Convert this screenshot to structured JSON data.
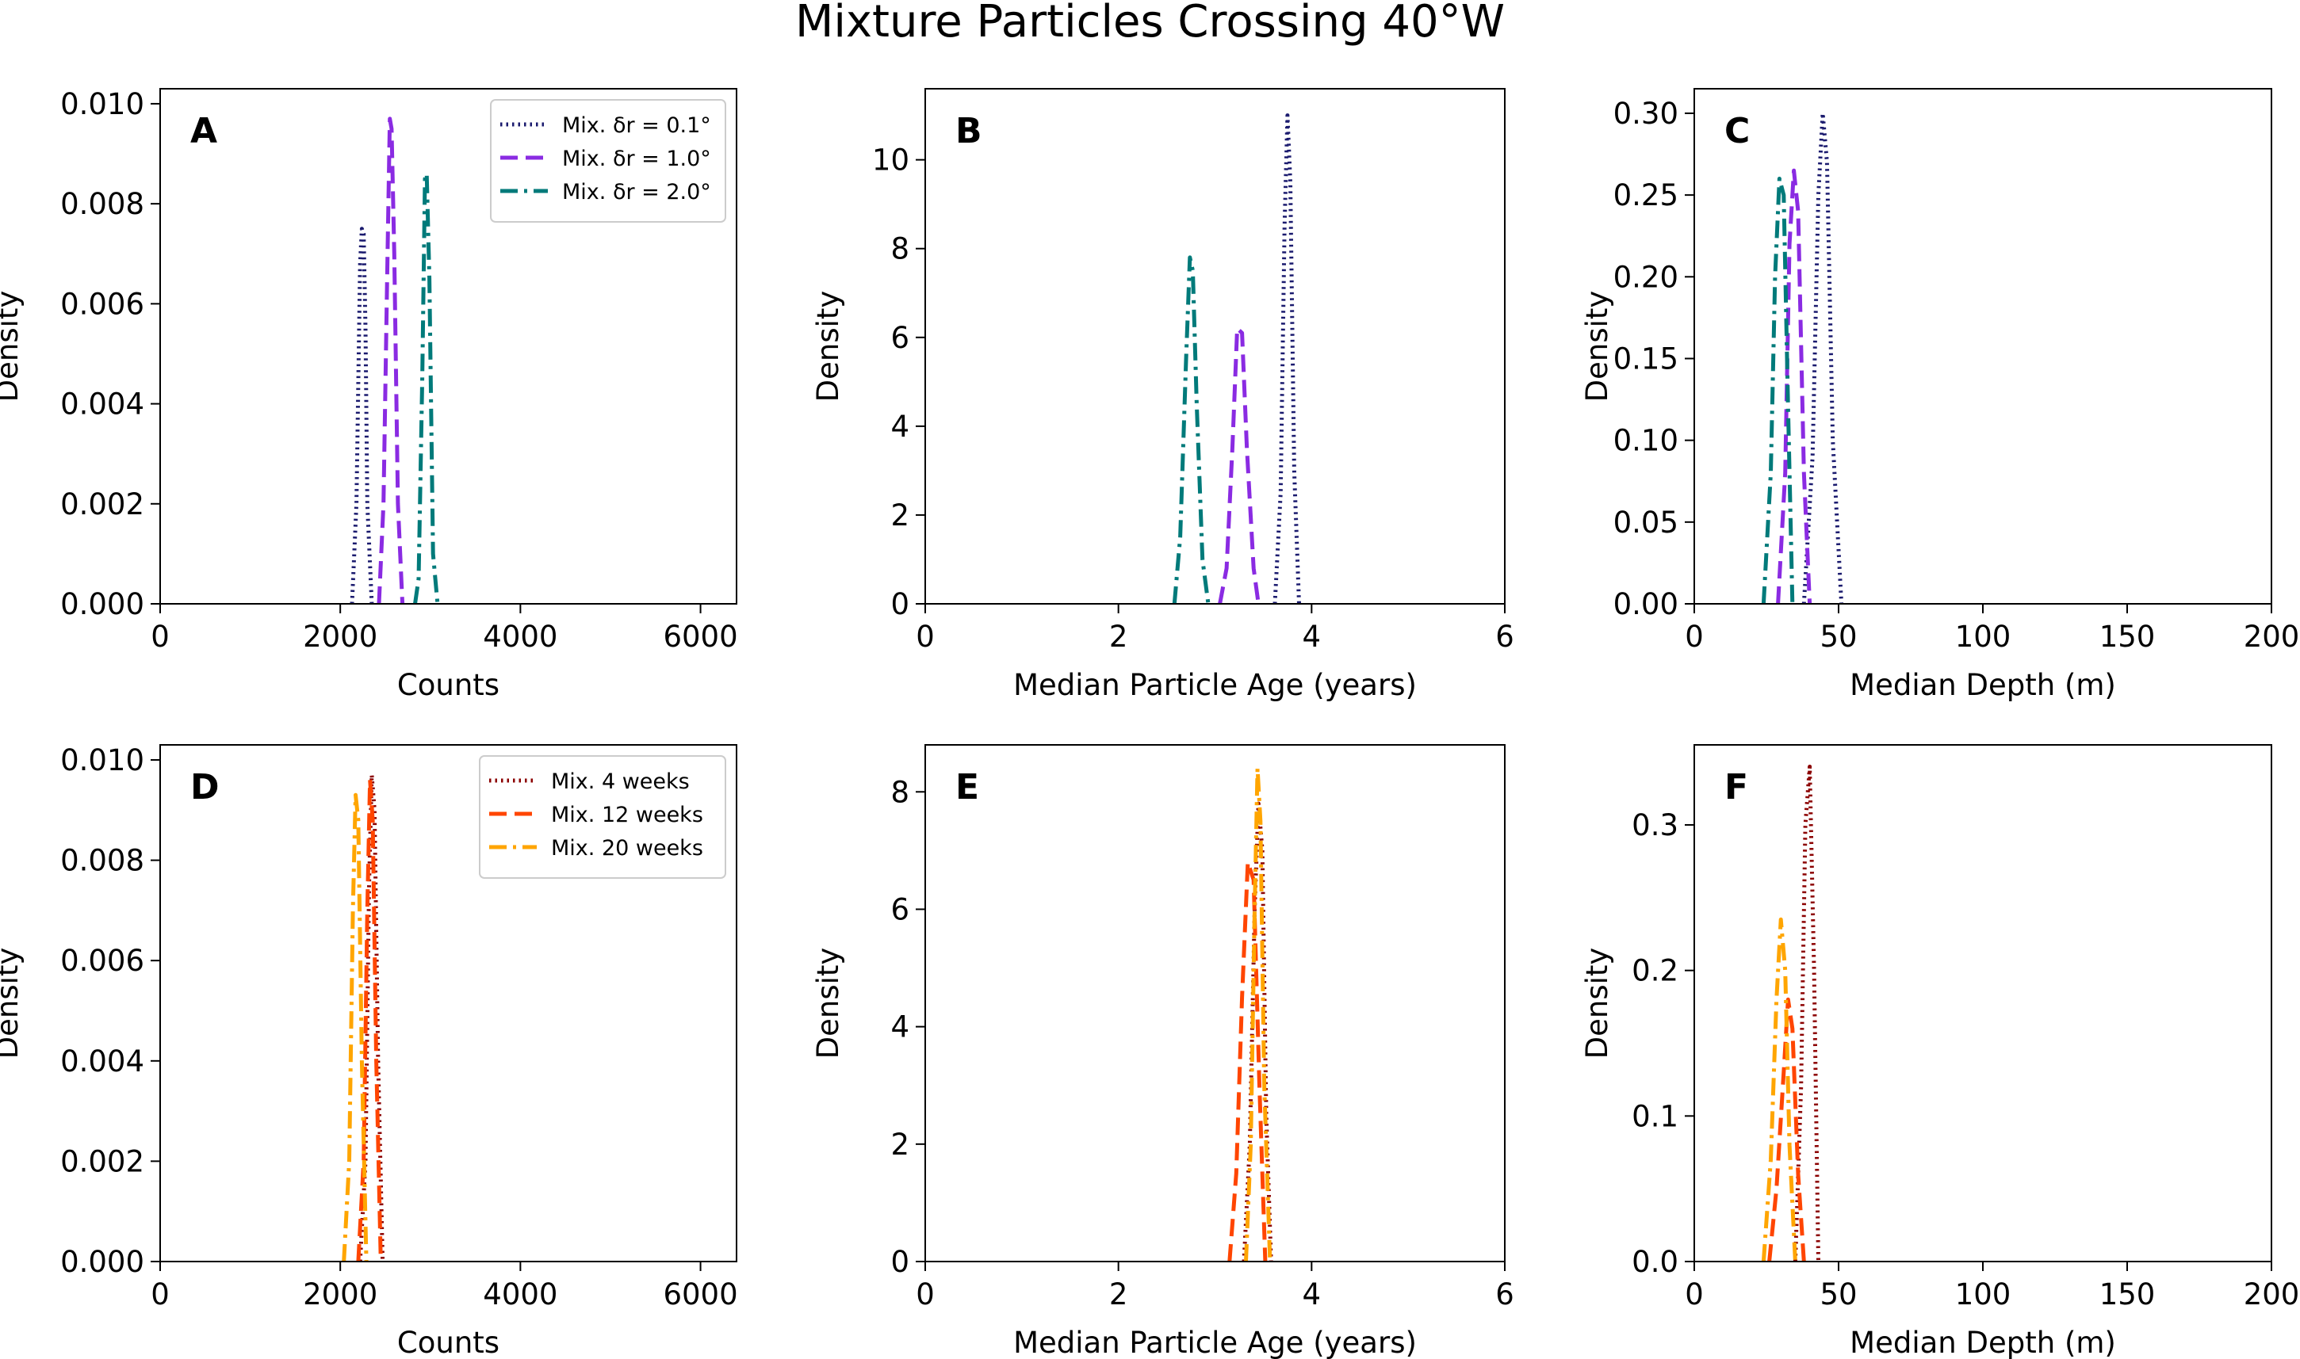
{
  "figure": {
    "title": "Mixture Particles Crossing 40°W"
  },
  "chart_data": [
    {
      "type": "line",
      "panel": "A",
      "xlabel": "Counts",
      "ylabel": "Density",
      "xlim": [
        0,
        6400
      ],
      "ylim": [
        0,
        0.0103
      ],
      "xticks": [
        0,
        2000,
        4000,
        6000
      ],
      "xtick_labels": [
        "0",
        "2000",
        "4000",
        "6000"
      ],
      "yticks": [
        0,
        0.002,
        0.004,
        0.006,
        0.008,
        0.01
      ],
      "ytick_labels": [
        "0.000",
        "0.002",
        "0.004",
        "0.006",
        "0.008",
        "0.010"
      ],
      "legend": "top-right",
      "series": [
        {
          "name": "Mix. δr = 0.1°",
          "color": "#1a1a6e",
          "style": "dotted",
          "x": [
            2130,
            2180,
            2220,
            2240,
            2260,
            2280,
            2300,
            2350
          ],
          "y": [
            0,
            0.002,
            0.0068,
            0.0075,
            0.0074,
            0.0055,
            0.002,
            0
          ]
        },
        {
          "name": "Mix. δr = 1.0°",
          "color": "#8a2be2",
          "style": "dashed",
          "x": [
            2430,
            2480,
            2520,
            2550,
            2570,
            2600,
            2640,
            2690
          ],
          "y": [
            0,
            0.002,
            0.0065,
            0.0097,
            0.0095,
            0.007,
            0.002,
            0
          ]
        },
        {
          "name": "Mix. δr = 2.0°",
          "color": "#007a7a",
          "style": "dashdot",
          "x": [
            2830,
            2870,
            2910,
            2940,
            2960,
            2990,
            3030,
            3080
          ],
          "y": [
            0,
            0.0005,
            0.0045,
            0.0085,
            0.0086,
            0.0065,
            0.001,
            0
          ]
        }
      ]
    },
    {
      "type": "line",
      "panel": "B",
      "xlabel": "Median Particle Age (years)",
      "ylabel": "Density",
      "xlim": [
        0,
        6
      ],
      "ylim": [
        0,
        11.6
      ],
      "xticks": [
        0,
        2,
        4,
        6
      ],
      "xtick_labels": [
        "0",
        "2",
        "4",
        "6"
      ],
      "yticks": [
        0,
        2,
        4,
        6,
        8,
        10
      ],
      "ytick_labels": [
        "0",
        "2",
        "4",
        "6",
        "8",
        "10"
      ],
      "series": [
        {
          "name": "Mix. δr = 0.1°",
          "color": "#1a1a6e",
          "style": "dotted",
          "x": [
            3.62,
            3.68,
            3.72,
            3.75,
            3.78,
            3.82,
            3.87
          ],
          "y": [
            0,
            2.5,
            8.5,
            11.0,
            9.5,
            3.0,
            0
          ]
        },
        {
          "name": "Mix. δr = 1.0°",
          "color": "#8a2be2",
          "style": "dashed",
          "x": [
            3.05,
            3.12,
            3.18,
            3.23,
            3.28,
            3.33,
            3.4,
            3.45
          ],
          "y": [
            0,
            0.8,
            3.5,
            6.2,
            6.1,
            3.5,
            0.8,
            0
          ]
        },
        {
          "name": "Mix. δr = 2.0°",
          "color": "#007a7a",
          "style": "dashdot",
          "x": [
            2.58,
            2.64,
            2.7,
            2.74,
            2.77,
            2.81,
            2.87,
            2.93
          ],
          "y": [
            0,
            1.5,
            5.5,
            7.8,
            7.5,
            4.5,
            1.0,
            0
          ]
        }
      ]
    },
    {
      "type": "line",
      "panel": "C",
      "xlabel": "Median Depth (m)",
      "ylabel": "Density",
      "xlim": [
        0,
        200
      ],
      "ylim": [
        0,
        0.315
      ],
      "xticks": [
        0,
        50,
        100,
        150,
        200
      ],
      "xtick_labels": [
        "0",
        "50",
        "100",
        "150",
        "200"
      ],
      "yticks": [
        0,
        0.05,
        0.1,
        0.15,
        0.2,
        0.25,
        0.3
      ],
      "ytick_labels": [
        "0.00",
        "0.05",
        "0.10",
        "0.15",
        "0.20",
        "0.25",
        "0.30"
      ],
      "series": [
        {
          "name": "Mix. δr = 0.1°",
          "color": "#1a1a6e",
          "style": "dotted",
          "x": [
            38,
            41,
            43,
            44.5,
            46,
            48,
            51
          ],
          "y": [
            0,
            0.09,
            0.25,
            0.3,
            0.27,
            0.1,
            0
          ]
        },
        {
          "name": "Mix. δr = 1.0°",
          "color": "#8a2be2",
          "style": "dashed",
          "x": [
            29,
            31.5,
            33,
            34.5,
            36,
            38,
            40
          ],
          "y": [
            0,
            0.08,
            0.22,
            0.265,
            0.24,
            0.08,
            0
          ]
        },
        {
          "name": "Mix. δr = 2.0°",
          "color": "#007a7a",
          "style": "dashdot",
          "x": [
            24,
            26.5,
            28,
            29.5,
            31,
            32.5,
            34
          ],
          "y": [
            0,
            0.08,
            0.2,
            0.26,
            0.25,
            0.12,
            0
          ]
        }
      ]
    },
    {
      "type": "line",
      "panel": "D",
      "xlabel": "Counts",
      "ylabel": "Density",
      "xlim": [
        0,
        6400
      ],
      "ylim": [
        0,
        0.0103
      ],
      "xticks": [
        0,
        2000,
        4000,
        6000
      ],
      "xtick_labels": [
        "0",
        "2000",
        "4000",
        "6000"
      ],
      "yticks": [
        0,
        0.002,
        0.004,
        0.006,
        0.008,
        0.01
      ],
      "ytick_labels": [
        "0.000",
        "0.002",
        "0.004",
        "0.006",
        "0.008",
        "0.010"
      ],
      "legend": "top-right",
      "series": [
        {
          "name": "Mix. 4 weeks",
          "color": "#8b0000",
          "style": "dotted",
          "x": [
            2220,
            2280,
            2320,
            2350,
            2380,
            2420,
            2470
          ],
          "y": [
            0,
            0.002,
            0.0075,
            0.0097,
            0.009,
            0.004,
            0
          ]
        },
        {
          "name": "Mix. 12 weeks",
          "color": "#ff4500",
          "style": "dashed",
          "x": [
            2200,
            2260,
            2300,
            2330,
            2360,
            2400,
            2450
          ],
          "y": [
            0,
            0.002,
            0.007,
            0.0096,
            0.0088,
            0.004,
            0
          ]
        },
        {
          "name": "Mix. 20 weeks",
          "color": "#ffa500",
          "style": "dashdot",
          "x": [
            2040,
            2100,
            2140,
            2170,
            2200,
            2240,
            2290
          ],
          "y": [
            0,
            0.002,
            0.007,
            0.0093,
            0.0088,
            0.004,
            0
          ]
        }
      ]
    },
    {
      "type": "line",
      "panel": "E",
      "xlabel": "Median Particle Age (years)",
      "ylabel": "Density",
      "xlim": [
        0,
        6
      ],
      "ylim": [
        0,
        8.8
      ],
      "xticks": [
        0,
        2,
        4,
        6
      ],
      "xtick_labels": [
        "0",
        "2",
        "4",
        "6"
      ],
      "yticks": [
        0,
        2,
        4,
        6,
        8
      ],
      "ytick_labels": [
        "0",
        "2",
        "4",
        "6",
        "8"
      ],
      "series": [
        {
          "name": "Mix. 4 weeks",
          "color": "#8b0000",
          "style": "dotted",
          "x": [
            3.3,
            3.36,
            3.41,
            3.45,
            3.49,
            3.53,
            3.58
          ],
          "y": [
            0,
            2.0,
            6.0,
            7.8,
            7.0,
            2.5,
            0
          ]
        },
        {
          "name": "Mix. 12 weeks",
          "color": "#ff4500",
          "style": "dashed",
          "x": [
            3.15,
            3.22,
            3.28,
            3.34,
            3.4,
            3.46,
            3.52
          ],
          "y": [
            0,
            1.5,
            4.5,
            6.8,
            6.5,
            3.0,
            0
          ]
        },
        {
          "name": "Mix. 20 weeks",
          "color": "#ffa500",
          "style": "dashdot",
          "x": [
            3.32,
            3.37,
            3.41,
            3.44,
            3.47,
            3.51,
            3.57
          ],
          "y": [
            0,
            2.0,
            6.0,
            8.4,
            7.5,
            3.0,
            0
          ]
        }
      ]
    },
    {
      "type": "line",
      "panel": "F",
      "xlabel": "Median Depth (m)",
      "ylabel": "Density",
      "xlim": [
        0,
        200
      ],
      "ylim": [
        0,
        0.355
      ],
      "xticks": [
        0,
        50,
        100,
        150,
        200
      ],
      "xtick_labels": [
        "0",
        "50",
        "100",
        "150",
        "200"
      ],
      "yticks": [
        0,
        0.1,
        0.2,
        0.3
      ],
      "ytick_labels": [
        "0.0",
        "0.1",
        "0.2",
        "0.3"
      ],
      "series": [
        {
          "name": "Mix. 4 weeks",
          "color": "#8b0000",
          "style": "dotted",
          "x": [
            35,
            37,
            38.5,
            40,
            41.5,
            43
          ],
          "y": [
            0,
            0.12,
            0.3,
            0.34,
            0.2,
            0
          ]
        },
        {
          "name": "Mix. 12 weeks",
          "color": "#ff4500",
          "style": "dashed",
          "x": [
            26,
            28.5,
            31,
            32.5,
            34,
            36,
            38
          ],
          "y": [
            0,
            0.05,
            0.13,
            0.18,
            0.16,
            0.06,
            0
          ]
        },
        {
          "name": "Mix. 20 weeks",
          "color": "#ffa500",
          "style": "dashdot",
          "x": [
            24,
            26.5,
            28.5,
            30,
            31.5,
            33,
            35
          ],
          "y": [
            0,
            0.07,
            0.18,
            0.235,
            0.2,
            0.08,
            0
          ]
        }
      ]
    }
  ]
}
